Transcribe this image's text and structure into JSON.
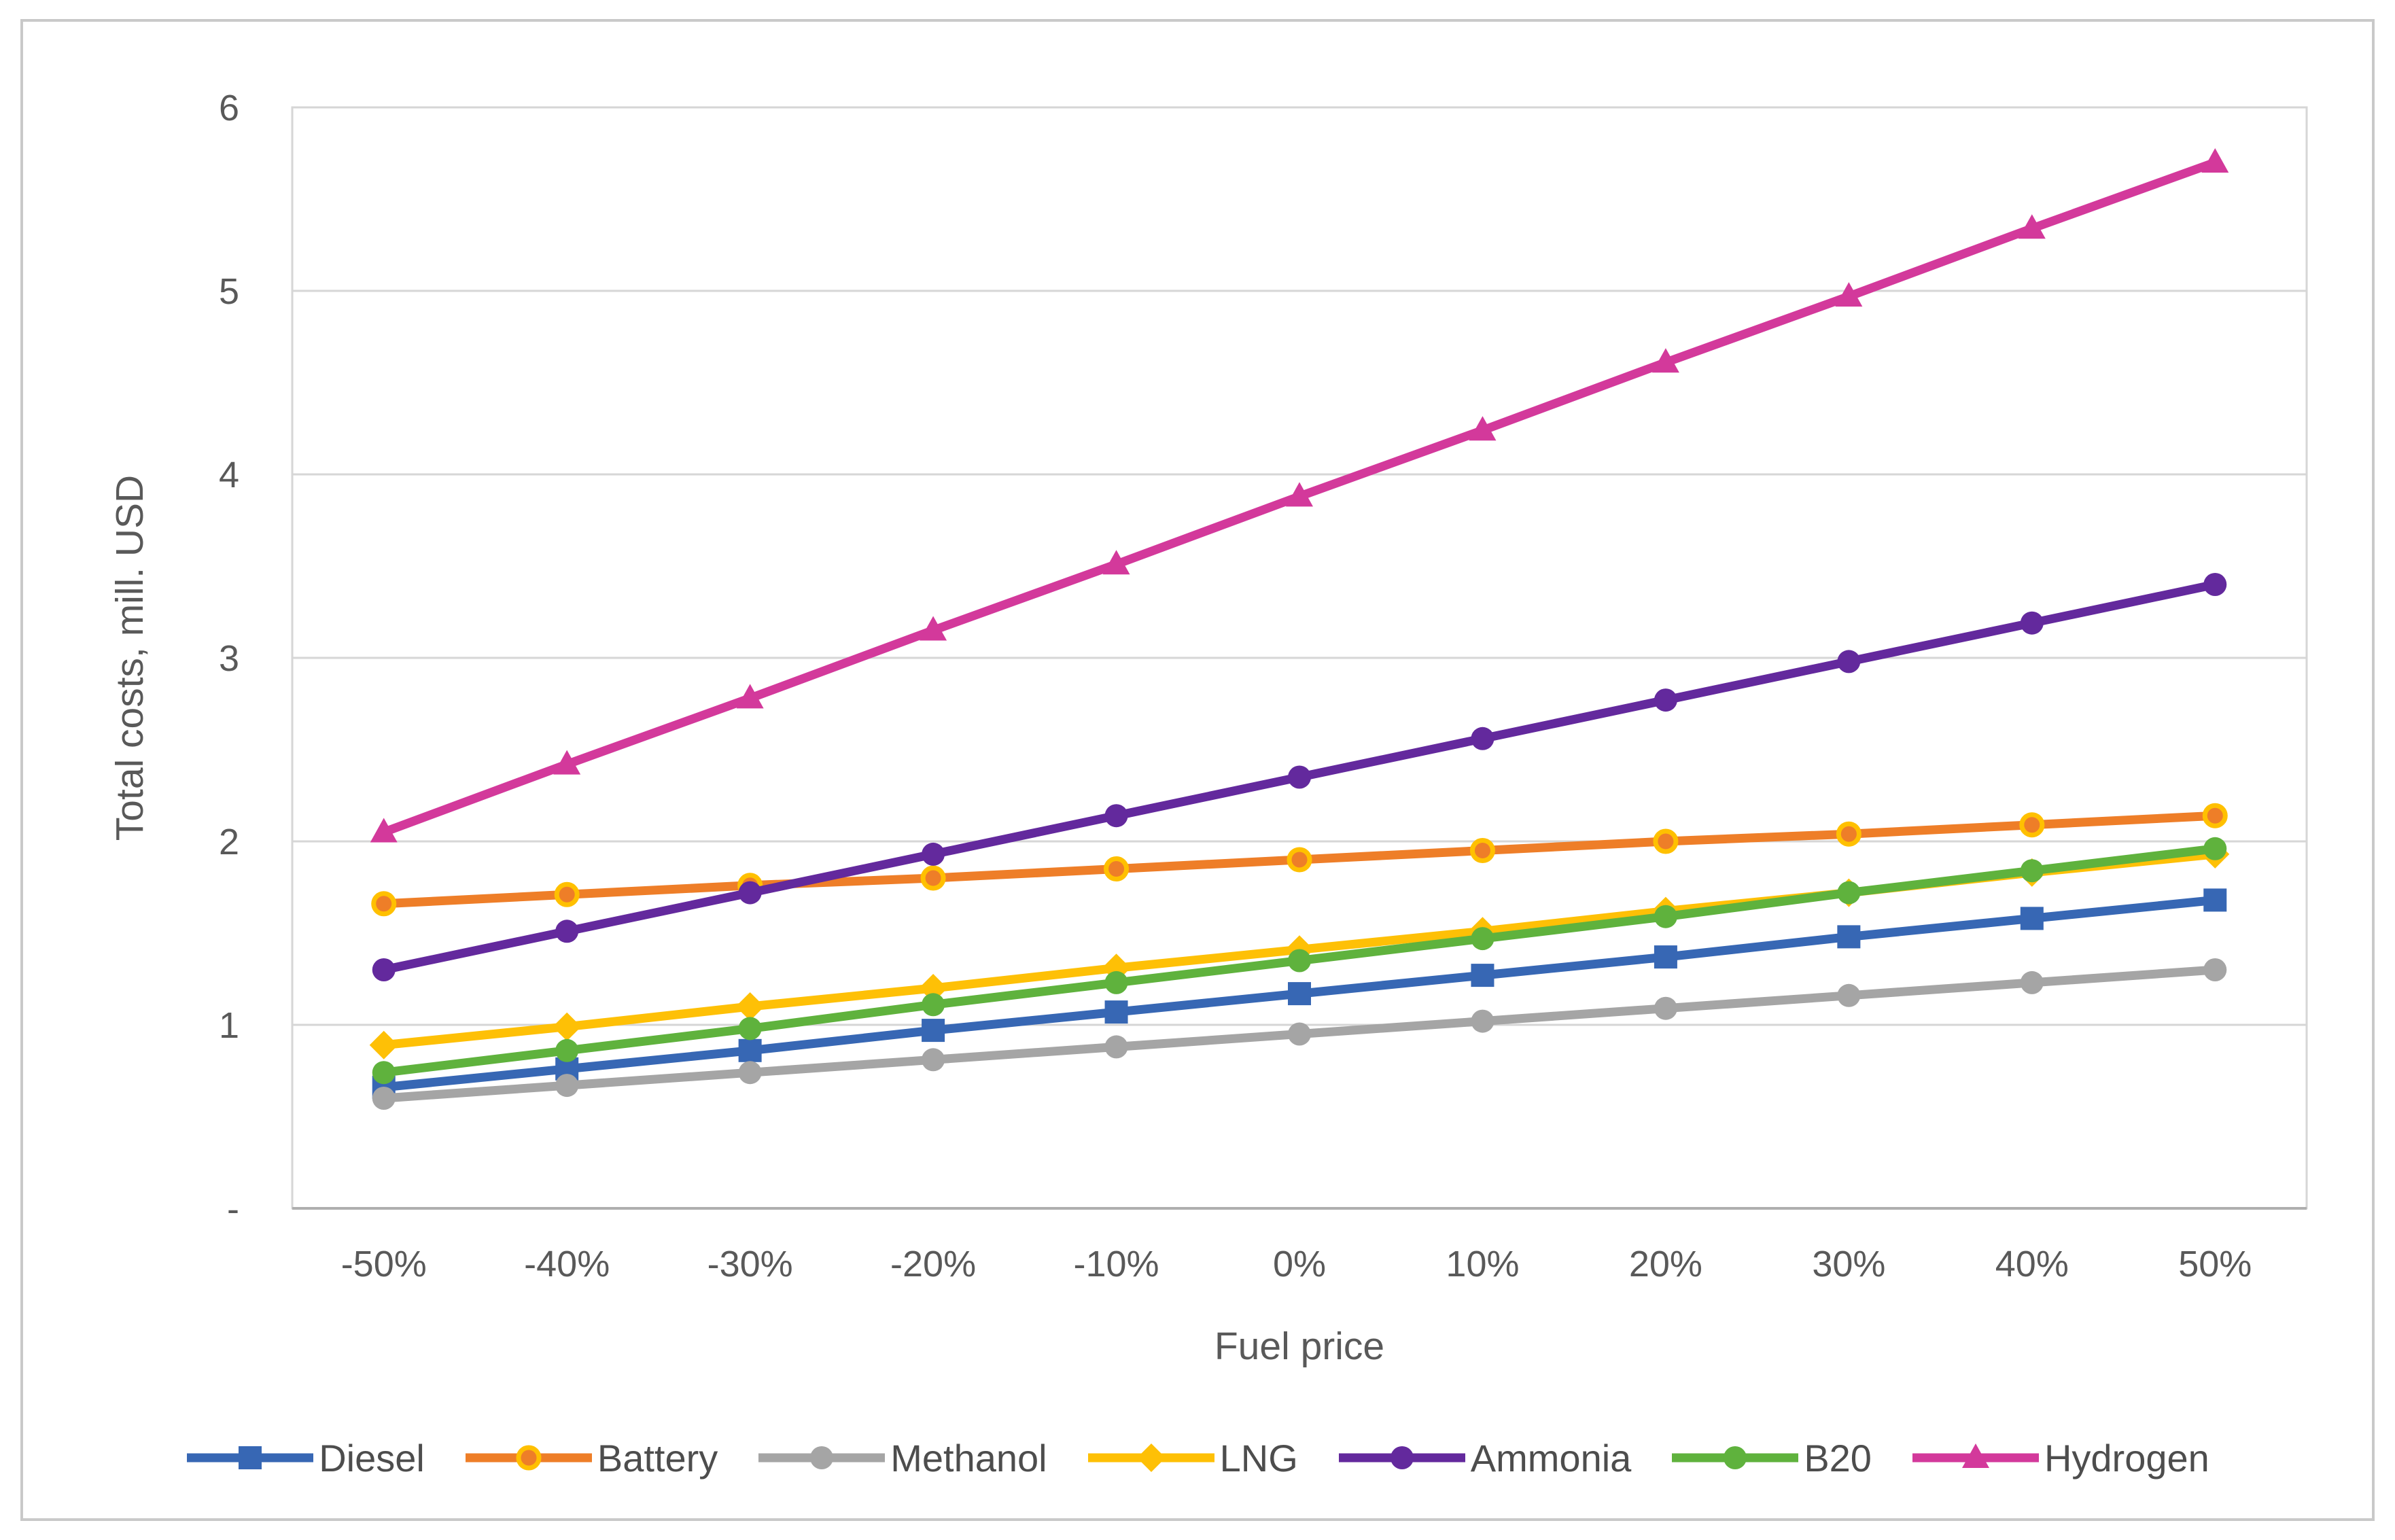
{
  "chart_data": {
    "type": "line",
    "title": "",
    "xlabel": "Fuel price",
    "ylabel": "Total costs, mill. USD",
    "ylim": [
      0,
      6
    ],
    "y_tick_labels": [
      "-",
      "1",
      "2",
      "3",
      "4",
      "5",
      "6"
    ],
    "grid": "horizontal",
    "legend_position": "bottom",
    "categories": [
      "-50%",
      "-40%",
      "-30%",
      "-20%",
      "-10%",
      "0%",
      "10%",
      "20%",
      "30%",
      "40%",
      "50%"
    ],
    "series": [
      {
        "name": "Diesel",
        "color": "#3767b4",
        "marker": "square",
        "values": [
          0.66,
          0.76,
          0.86,
          0.97,
          1.07,
          1.17,
          1.27,
          1.37,
          1.48,
          1.58,
          1.68
        ]
      },
      {
        "name": "Battery",
        "color": "#ee7e28",
        "marker": "circle",
        "marker_border": "#ffc000",
        "values": [
          1.66,
          1.71,
          1.76,
          1.8,
          1.85,
          1.9,
          1.95,
          2.0,
          2.04,
          2.09,
          2.14
        ]
      },
      {
        "name": "Methanol",
        "color": "#a5a5a5",
        "marker": "circle",
        "values": [
          0.6,
          0.67,
          0.74,
          0.81,
          0.88,
          0.95,
          1.02,
          1.09,
          1.16,
          1.23,
          1.3
        ]
      },
      {
        "name": "LNG",
        "color": "#fec006",
        "marker": "diamond",
        "values": [
          0.89,
          0.99,
          1.1,
          1.2,
          1.31,
          1.41,
          1.51,
          1.62,
          1.72,
          1.83,
          1.93
        ]
      },
      {
        "name": "Ammonia",
        "color": "#63299d",
        "marker": "circle",
        "values": [
          1.3,
          1.51,
          1.72,
          1.93,
          2.14,
          2.35,
          2.56,
          2.77,
          2.98,
          3.19,
          3.4
        ]
      },
      {
        "name": "B20",
        "color": "#5fb23d",
        "marker": "circle",
        "values": [
          0.74,
          0.86,
          0.98,
          1.11,
          1.23,
          1.35,
          1.47,
          1.59,
          1.72,
          1.84,
          1.96
        ]
      },
      {
        "name": "Hydrogen",
        "color": "#d3399b",
        "marker": "triangle",
        "values": [
          2.05,
          2.42,
          2.78,
          3.15,
          3.51,
          3.88,
          4.24,
          4.61,
          4.97,
          5.34,
          5.7
        ]
      }
    ]
  }
}
